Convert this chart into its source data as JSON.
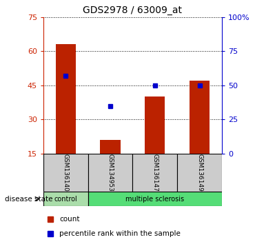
{
  "title": "GDS2978 / 63009_at",
  "samples": [
    "GSM136140",
    "GSM134953",
    "GSM136147",
    "GSM136149"
  ],
  "counts": [
    63,
    21,
    40,
    47
  ],
  "percentiles": [
    57,
    35,
    50,
    50
  ],
  "ylim_left": [
    15,
    75
  ],
  "ylim_right": [
    0,
    100
  ],
  "yticks_left": [
    15,
    30,
    45,
    60,
    75
  ],
  "yticks_right": [
    0,
    25,
    50,
    75,
    100
  ],
  "ytick_labels_right": [
    "0",
    "25",
    "50",
    "75",
    "100%"
  ],
  "bar_color": "#BB2200",
  "dot_color": "#0000CC",
  "sample_box_color": "#CCCCCC",
  "ctrl_color": "#AADDAA",
  "ms_color": "#55DD77",
  "disease_state_label": "disease state",
  "legend_count_label": "count",
  "legend_percentile_label": "percentile rank within the sample",
  "left_axis_color": "#CC2200",
  "right_axis_color": "#0000CC",
  "ctrl_samples": 1,
  "ms_samples": 3
}
